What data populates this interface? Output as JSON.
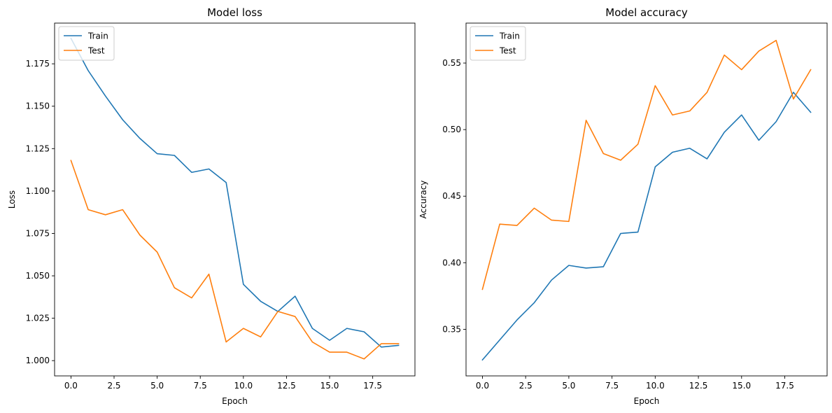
{
  "chart_data": [
    {
      "type": "line",
      "title": "Model loss",
      "xlabel": "Epoch",
      "ylabel": "Loss",
      "x": [
        0,
        1,
        2,
        3,
        4,
        5,
        6,
        7,
        8,
        9,
        10,
        11,
        12,
        13,
        14,
        15,
        16,
        17,
        18,
        19
      ],
      "xlim": [
        -0.95,
        19.95
      ],
      "ylim": [
        0.991,
        1.199
      ],
      "xticks": [
        0,
        2.5,
        5,
        7.5,
        10,
        12.5,
        15,
        17.5
      ],
      "xtick_labels": [
        "0.0",
        "2.5",
        "5.0",
        "7.5",
        "10.0",
        "12.5",
        "15.0",
        "17.5"
      ],
      "yticks": [
        1.0,
        1.025,
        1.05,
        1.075,
        1.1,
        1.125,
        1.15,
        1.175
      ],
      "ytick_labels": [
        "1.000",
        "1.025",
        "1.050",
        "1.075",
        "1.100",
        "1.125",
        "1.150",
        "1.175"
      ],
      "legend_position": "upper-left",
      "series": [
        {
          "name": "Train",
          "color": "#1f77b4",
          "values": [
            1.19,
            1.171,
            1.156,
            1.142,
            1.131,
            1.122,
            1.121,
            1.111,
            1.113,
            1.105,
            1.045,
            1.035,
            1.029,
            1.038,
            1.019,
            1.012,
            1.019,
            1.017,
            1.008,
            1.009
          ]
        },
        {
          "name": "Test",
          "color": "#ff7f0e",
          "values": [
            1.118,
            1.089,
            1.086,
            1.089,
            1.074,
            1.064,
            1.043,
            1.037,
            1.051,
            1.011,
            1.019,
            1.014,
            1.029,
            1.026,
            1.011,
            1.005,
            1.005,
            1.001,
            1.01,
            1.01
          ]
        }
      ]
    },
    {
      "type": "line",
      "title": "Model accuracy",
      "xlabel": "Epoch",
      "ylabel": "Accuracy",
      "x": [
        0,
        1,
        2,
        3,
        4,
        5,
        6,
        7,
        8,
        9,
        10,
        11,
        12,
        13,
        14,
        15,
        16,
        17,
        18,
        19
      ],
      "xlim": [
        -0.95,
        19.95
      ],
      "ylim": [
        0.315,
        0.58
      ],
      "xticks": [
        0,
        2.5,
        5,
        7.5,
        10,
        12.5,
        15,
        17.5
      ],
      "xtick_labels": [
        "0.0",
        "2.5",
        "5.0",
        "7.5",
        "10.0",
        "12.5",
        "15.0",
        "17.5"
      ],
      "yticks": [
        0.35,
        0.4,
        0.45,
        0.5,
        0.55
      ],
      "ytick_labels": [
        "0.35",
        "0.40",
        "0.45",
        "0.50",
        "0.55"
      ],
      "legend_position": "upper-left",
      "series": [
        {
          "name": "Train",
          "color": "#1f77b4",
          "values": [
            0.327,
            0.342,
            0.357,
            0.37,
            0.387,
            0.398,
            0.396,
            0.397,
            0.422,
            0.423,
            0.472,
            0.483,
            0.486,
            0.478,
            0.498,
            0.511,
            0.492,
            0.506,
            0.528,
            0.513
          ]
        },
        {
          "name": "Test",
          "color": "#ff7f0e",
          "values": [
            0.38,
            0.429,
            0.428,
            0.441,
            0.432,
            0.431,
            0.507,
            0.482,
            0.477,
            0.489,
            0.533,
            0.511,
            0.514,
            0.528,
            0.556,
            0.545,
            0.559,
            0.567,
            0.523,
            0.545
          ]
        }
      ]
    }
  ]
}
